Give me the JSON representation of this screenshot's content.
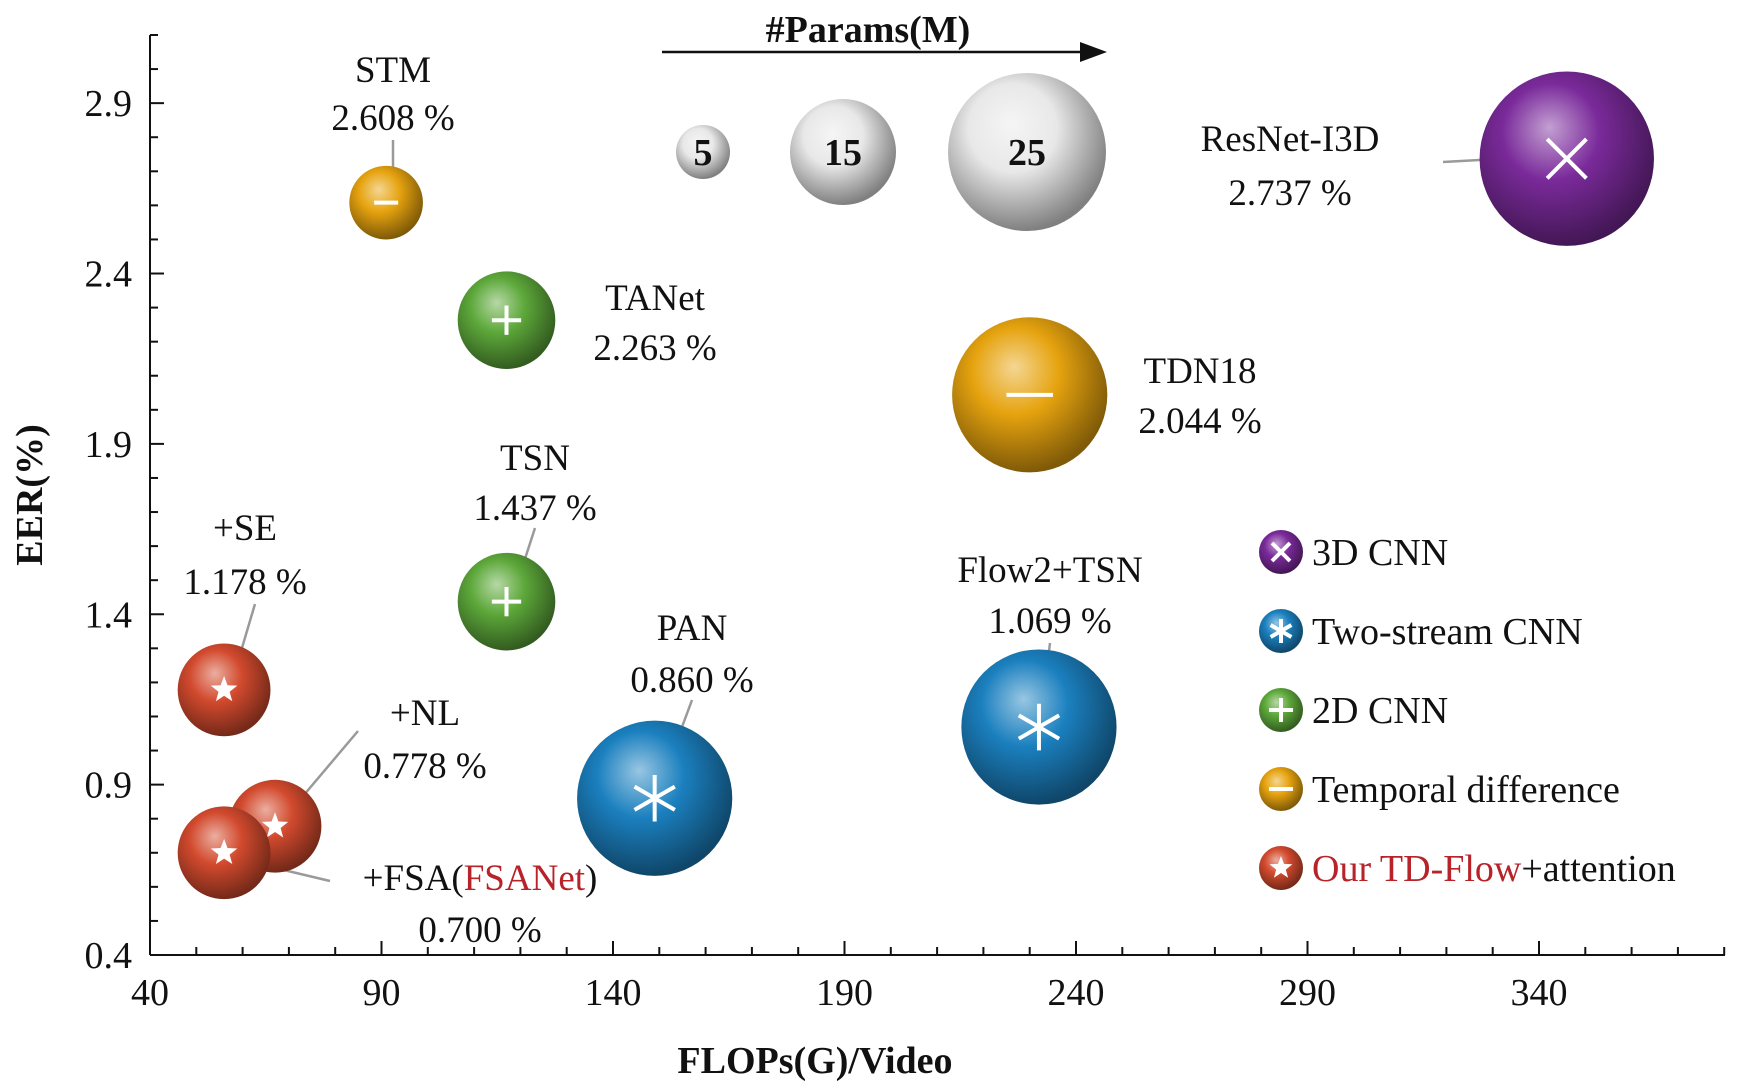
{
  "colors": {
    "3D CNN": "#7a2a9a",
    "Two-stream CNN": "#1b80bf",
    "2D CNN": "#5da83a",
    "Temporal difference": "#e6a30f",
    "Ours": "#d24a2e",
    "size_ref": "#e8e8e8",
    "highlight_text": "#b8232a"
  },
  "chart_data": {
    "type": "bubble",
    "xlabel": "FLOPs(G)/Video",
    "ylabel": "EER(%)",
    "xlim": [
      40,
      380
    ],
    "ylim": [
      0.4,
      3.1
    ],
    "xticks": [
      40,
      90,
      140,
      190,
      240,
      290,
      340
    ],
    "yticks": [
      0.4,
      0.9,
      1.4,
      1.9,
      2.4,
      2.9
    ],
    "points": [
      {
        "name": "STM",
        "value_label": "2.608 %",
        "x": 91,
        "y": 2.608,
        "params": 7,
        "category": "Temporal difference",
        "marker": "minus"
      },
      {
        "name": "TANet",
        "value_label": "2.263 %",
        "x": 117,
        "y": 2.263,
        "params": 12,
        "category": "2D CNN",
        "marker": "plus"
      },
      {
        "name": "TSN",
        "value_label": "1.437 %",
        "x": 117,
        "y": 1.437,
        "params": 12,
        "category": "2D CNN",
        "marker": "plus"
      },
      {
        "name": "+SE",
        "value_label": "1.178 %",
        "x": 56,
        "y": 1.178,
        "params": 11,
        "category": "Ours",
        "marker": "star"
      },
      {
        "name": "+NL",
        "value_label": "0.778 %",
        "x": 67,
        "y": 0.778,
        "params": 11,
        "category": "Ours",
        "marker": "star"
      },
      {
        "name": "+FSA(",
        "name_highlight": "FSANet",
        "name_suffix": ")",
        "value_label": "0.700 %",
        "x": 56,
        "y": 0.7,
        "params": 11,
        "category": "Ours",
        "marker": "star"
      },
      {
        "name": "PAN",
        "value_label": "0.860 %",
        "x": 149,
        "y": 0.86,
        "params": 24,
        "category": "Two-stream CNN",
        "marker": "asterisk"
      },
      {
        "name": "Flow2+TSN",
        "value_label": "1.069 %",
        "x": 232,
        "y": 1.069,
        "params": 24,
        "category": "Two-stream CNN",
        "marker": "asterisk"
      },
      {
        "name": "TDN18",
        "value_label": "2.044 %",
        "x": 230,
        "y": 2.044,
        "params": 24,
        "category": "Temporal difference",
        "marker": "minus"
      },
      {
        "name": "ResNet-I3D",
        "value_label": "2.737 %",
        "x": 346,
        "y": 2.737,
        "params": 28,
        "category": "3D CNN",
        "marker": "cross"
      }
    ],
    "size_legend": {
      "title": "#Params(M)",
      "sizes": [
        5,
        15,
        25
      ]
    },
    "legend": [
      {
        "category": "3D CNN",
        "label": "3D CNN",
        "marker": "cross"
      },
      {
        "category": "Two-stream CNN",
        "label": "Two-stream CNN",
        "marker": "asterisk"
      },
      {
        "category": "2D CNN",
        "label": "2D CNN",
        "marker": "plus"
      },
      {
        "category": "Temporal difference",
        "label": "Temporal difference",
        "marker": "minus"
      },
      {
        "category": "Ours",
        "label": "Our TD-Flow",
        "label_suffix": "+attention",
        "marker": "star"
      }
    ]
  }
}
